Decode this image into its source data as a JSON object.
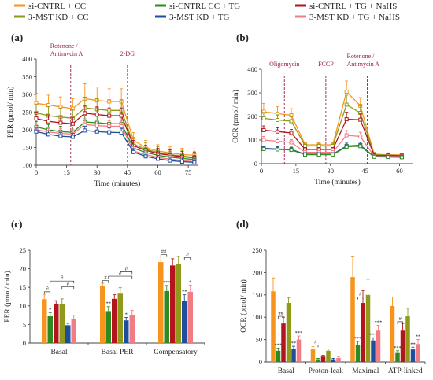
{
  "legend": [
    {
      "label": "si-CNTRL + CC",
      "color": "#f7941d"
    },
    {
      "label": "si-CNTRL CC + TG",
      "color": "#2e8b22"
    },
    {
      "label": "si-CNTRL + TG + NaHS",
      "color": "#b3151d"
    },
    {
      "label": "3-MST KD + CC",
      "color": "#8f9a1a"
    },
    {
      "label": "3-MST KD + TG",
      "color": "#1f4e9c"
    },
    {
      "label": "3-MST KD + TG + NaHS",
      "color": "#f27c84"
    }
  ],
  "panel_labels": [
    "(a)",
    "(b)",
    "(c)",
    "(d)"
  ],
  "chart_data": [
    {
      "panel": "(a)",
      "type": "line",
      "xlabel": "Time (minutes)",
      "ylabel": "PER (pmol/ min)",
      "xlim": [
        0,
        80
      ],
      "ylim": [
        100,
        400
      ],
      "xticks": [
        0,
        15,
        30,
        45,
        60,
        75
      ],
      "yticks": [
        100,
        150,
        200,
        250,
        300,
        350,
        400
      ],
      "x": [
        0,
        6,
        12,
        18,
        24,
        30,
        36,
        42,
        48,
        54,
        60,
        66,
        72,
        78
      ],
      "markers": [
        {
          "x": 17,
          "label": "Rotenone / Antimycin A"
        },
        {
          "x": 45,
          "label": "2-DG"
        }
      ],
      "series": [
        {
          "color": "#f7941d",
          "values": [
            275,
            270,
            265,
            260,
            288,
            283,
            280,
            280,
            170,
            150,
            140,
            135,
            130,
            128
          ],
          "err": [
            28,
            28,
            28,
            28,
            42,
            38,
            36,
            36,
            22,
            20,
            18,
            18,
            18,
            18
          ]
        },
        {
          "color": "#8f9a1a",
          "values": [
            248,
            240,
            236,
            233,
            262,
            258,
            255,
            255,
            160,
            145,
            136,
            130,
            126,
            122
          ],
          "err": [
            25,
            25,
            25,
            25,
            30,
            30,
            30,
            30,
            18,
            18,
            16,
            16,
            16,
            16
          ]
        },
        {
          "color": "#b3151d",
          "values": [
            232,
            224,
            220,
            217,
            247,
            243,
            240,
            240,
            155,
            142,
            133,
            128,
            124,
            121
          ],
          "err": [
            18,
            18,
            18,
            18,
            22,
            22,
            22,
            22,
            15,
            15,
            15,
            15,
            15,
            15
          ]
        },
        {
          "color": "#2e8b22",
          "values": [
            208,
            200,
            195,
            193,
            222,
            220,
            217,
            217,
            148,
            136,
            128,
            123,
            119,
            116
          ],
          "err": [
            15,
            15,
            15,
            15,
            18,
            18,
            18,
            18,
            12,
            12,
            12,
            12,
            12,
            12
          ]
        },
        {
          "color": "#f27c84",
          "values": [
            200,
            194,
            190,
            188,
            215,
            212,
            210,
            210,
            140,
            130,
            122,
            117,
            113,
            110
          ],
          "err": [
            14,
            14,
            14,
            14,
            16,
            16,
            16,
            16,
            12,
            12,
            12,
            12,
            12,
            12
          ]
        },
        {
          "color": "#1f4e9c",
          "values": [
            195,
            187,
            182,
            180,
            198,
            195,
            193,
            192,
            137,
            125,
            118,
            113,
            110,
            108
          ],
          "err": [
            10,
            10,
            10,
            10,
            12,
            12,
            12,
            12,
            10,
            10,
            10,
            10,
            10,
            10
          ]
        }
      ]
    },
    {
      "panel": "(b)",
      "type": "line",
      "xlabel": "Time (minutes)",
      "ylabel": "OCR (pmol/ min)",
      "xlim": [
        0,
        66
      ],
      "ylim": [
        0,
        400
      ],
      "xticks": [
        0,
        15,
        30,
        45,
        60
      ],
      "yticks": [
        0,
        100,
        200,
        300,
        400
      ],
      "x": [
        1,
        7,
        13,
        19,
        25,
        31,
        37,
        43,
        49,
        55,
        61
      ],
      "markers": [
        {
          "x": 10,
          "label": "Oligomycin"
        },
        {
          "x": 28,
          "label": "FCCP"
        },
        {
          "x": 46,
          "label": "Rotenone / Antimycin A"
        }
      ],
      "series": [
        {
          "color": "#f7941d",
          "values": [
            220,
            212,
            205,
            80,
            80,
            80,
            305,
            245,
            40,
            38,
            37
          ],
          "err": [
            35,
            30,
            28,
            10,
            10,
            10,
            45,
            35,
            8,
            8,
            8
          ]
        },
        {
          "color": "#8f9a1a",
          "values": [
            192,
            185,
            180,
            75,
            75,
            75,
            250,
            215,
            38,
            36,
            35
          ],
          "err": [
            25,
            22,
            20,
            8,
            8,
            8,
            40,
            30,
            8,
            8,
            8
          ]
        },
        {
          "color": "#b3151d",
          "values": [
            142,
            136,
            130,
            60,
            60,
            60,
            188,
            186,
            35,
            34,
            33
          ],
          "err": [
            18,
            16,
            15,
            8,
            8,
            8,
            30,
            25,
            6,
            6,
            6
          ]
        },
        {
          "color": "#f27c84",
          "values": [
            100,
            95,
            90,
            48,
            48,
            48,
            120,
            115,
            32,
            31,
            30
          ],
          "err": [
            15,
            14,
            12,
            6,
            6,
            6,
            20,
            18,
            6,
            6,
            6
          ]
        },
        {
          "color": "#1f4e9c",
          "values": [
            65,
            62,
            60,
            40,
            40,
            40,
            75,
            78,
            30,
            29,
            28
          ],
          "err": [
            10,
            10,
            10,
            6,
            6,
            6,
            12,
            12,
            5,
            5,
            5
          ]
        },
        {
          "color": "#2e8b22",
          "values": [
            62,
            60,
            58,
            38,
            38,
            38,
            72,
            74,
            29,
            28,
            27
          ],
          "err": [
            8,
            8,
            8,
            5,
            5,
            5,
            10,
            10,
            5,
            5,
            5
          ]
        }
      ]
    },
    {
      "panel": "(c)",
      "type": "bar",
      "ylabel": "PER (pmol/ min)",
      "ylim": [
        0,
        25
      ],
      "yticks": [
        0,
        5,
        10,
        15,
        20,
        25
      ],
      "categories": [
        "Basal",
        "Basal PER",
        "Compensatory"
      ],
      "series": [
        {
          "color": "#f7941d",
          "values": [
            11.8,
            15.3,
            21.8
          ],
          "err": [
            1.2,
            0.8,
            1.6
          ]
        },
        {
          "color": "#2e8b22",
          "values": [
            7.2,
            8.6,
            14.0
          ],
          "err": [
            1.0,
            1.2,
            1.5
          ]
        },
        {
          "color": "#b3151d",
          "values": [
            10.4,
            11.9,
            20.9
          ],
          "err": [
            1.0,
            1.1,
            1.8
          ]
        },
        {
          "color": "#8f9a1a",
          "values": [
            10.5,
            13.3,
            21.3
          ],
          "err": [
            1.4,
            1.6,
            2.0
          ]
        },
        {
          "color": "#1f4e9c",
          "values": [
            4.8,
            6.1,
            11.4
          ],
          "err": [
            0.5,
            0.8,
            1.6
          ]
        },
        {
          "color": "#f27c84",
          "values": [
            6.5,
            7.6,
            13.8
          ],
          "err": [
            1.0,
            1.2,
            1.8
          ]
        }
      ],
      "sig_labels": [
        [
          "",
          "*",
          "",
          "",
          "",
          ""
        ],
        [
          "",
          "**",
          "",
          "",
          "*",
          ""
        ],
        [
          "",
          "***",
          "",
          "",
          "**",
          "*"
        ]
      ],
      "brackets": [
        {
          "group": 0,
          "from": 0,
          "to": 1,
          "y": 13.8,
          "label": "∂"
        },
        {
          "group": 0,
          "from": 3,
          "to": 5,
          "y": 15.2,
          "label": "∂"
        },
        {
          "group": 0,
          "from": 1,
          "to": 5,
          "y": 16.7,
          "label": "∂"
        },
        {
          "group": 1,
          "from": 0,
          "to": 1,
          "y": 16.8,
          "label": "#"
        },
        {
          "group": 1,
          "from": 1,
          "to": 5,
          "y": 18.0,
          "label": "∂"
        },
        {
          "group": 1,
          "from": 3,
          "to": 5,
          "y": 19.2,
          "label": "∂"
        },
        {
          "group": 2,
          "from": 0,
          "to": 1,
          "y": 23.8,
          "label": "##"
        },
        {
          "group": 2,
          "from": 4,
          "to": 5,
          "y": 23.0,
          "label": "∂"
        }
      ]
    },
    {
      "panel": "(d)",
      "type": "bar",
      "ylabel": "OCR (pmol/ min)",
      "ylim": [
        0,
        250
      ],
      "yticks": [
        0,
        50,
        100,
        150,
        200,
        250
      ],
      "categories": [
        "Basal",
        "Proton-leak",
        "Maximal",
        "ATP-linked"
      ],
      "series": [
        {
          "color": "#f7941d",
          "values": [
            158,
            28,
            190,
            125
          ],
          "err": [
            30,
            6,
            45,
            20
          ]
        },
        {
          "color": "#2e8b22",
          "values": [
            25,
            6,
            38,
            20
          ],
          "err": [
            6,
            2,
            8,
            5
          ]
        },
        {
          "color": "#b3151d",
          "values": [
            86,
            12,
            132,
            70
          ],
          "err": [
            14,
            3,
            28,
            16
          ]
        },
        {
          "color": "#8f9a1a",
          "values": [
            132,
            25,
            150,
            102
          ],
          "err": [
            12,
            4,
            35,
            18
          ]
        },
        {
          "color": "#1f4e9c",
          "values": [
            30,
            6,
            48,
            28
          ],
          "err": [
            5,
            2,
            6,
            5
          ]
        },
        {
          "color": "#f27c84",
          "values": [
            50,
            9,
            70,
            40
          ],
          "err": [
            8,
            3,
            12,
            10
          ]
        }
      ],
      "sig_labels": [
        [
          "",
          "***",
          "",
          "",
          "**",
          "***"
        ],
        [
          "",
          "",
          "",
          "",
          "",
          ""
        ],
        [
          "",
          "***",
          "",
          "",
          "***",
          "***"
        ],
        [
          "",
          "***",
          "",
          "",
          "**",
          "**"
        ]
      ],
      "brackets": [
        {
          "group": 0,
          "from": 1,
          "to": 2,
          "y": 102,
          "label": "##"
        },
        {
          "group": 1,
          "from": 0,
          "to": 1,
          "y": 38,
          "label": "#"
        },
        {
          "group": 2,
          "from": 1,
          "to": 2,
          "y": 145,
          "label": "#"
        },
        {
          "group": 3,
          "from": 1,
          "to": 2,
          "y": 90,
          "label": "#"
        }
      ]
    }
  ]
}
